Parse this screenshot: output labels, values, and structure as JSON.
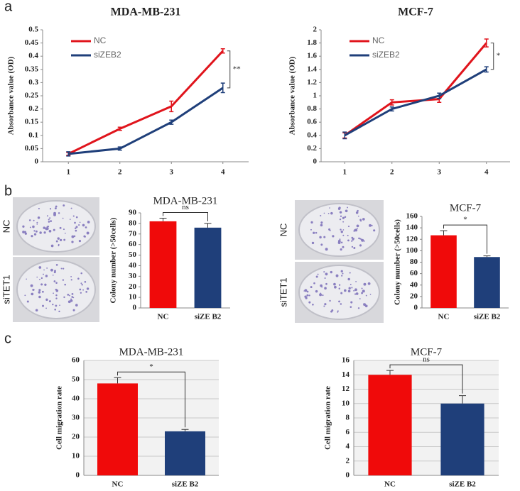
{
  "panels": [
    "a",
    "b",
    "c"
  ],
  "photos": [
    {
      "labels": [
        "NC",
        "siTET1"
      ]
    },
    {
      "labels": [
        "NC",
        "siTET1"
      ]
    }
  ],
  "chart_data": [
    {
      "type": "line",
      "title": "MDA-MB-231",
      "ylabel": "Absorbance value (OD)",
      "x": [
        1,
        2,
        3,
        4
      ],
      "xlim": [
        0.5,
        4.5
      ],
      "xticks": [
        1,
        2,
        3,
        4
      ],
      "ylim": [
        0,
        0.5
      ],
      "yticks": [
        0,
        0.05,
        0.1,
        0.15,
        0.2,
        0.25,
        0.3,
        0.35,
        0.4,
        0.45,
        0.5
      ],
      "series": [
        {
          "name": "NC",
          "color": "#e0141c",
          "values": [
            0.03,
            0.125,
            0.21,
            0.42
          ],
          "errors": [
            0.005,
            0.006,
            0.02,
            0.008
          ]
        },
        {
          "name": "siZEB2",
          "color": "#1f3f7a",
          "values": [
            0.03,
            0.05,
            0.15,
            0.28
          ],
          "errors": [
            0.008,
            0.006,
            0.008,
            0.018
          ]
        }
      ],
      "annotation": "**",
      "grid": false
    },
    {
      "type": "line",
      "title": "MCF-7",
      "ylabel": "Absorbance value (OD)",
      "x": [
        1,
        2,
        3,
        4
      ],
      "xlim": [
        0.5,
        4.5
      ],
      "xticks": [
        1,
        2,
        3,
        4
      ],
      "ylim": [
        0,
        2
      ],
      "yticks": [
        0,
        0.2,
        0.4,
        0.6,
        0.8,
        1,
        1.2,
        1.4,
        1.6,
        1.8,
        2
      ],
      "series": [
        {
          "name": "NC",
          "color": "#e0141c",
          "values": [
            0.4,
            0.9,
            0.95,
            1.8
          ],
          "errors": [
            0.04,
            0.04,
            0.05,
            0.06
          ]
        },
        {
          "name": "siZEB2",
          "color": "#1f3f7a",
          "values": [
            0.4,
            0.8,
            1.0,
            1.4
          ],
          "errors": [
            0.05,
            0.03,
            0.04,
            0.04
          ]
        }
      ],
      "annotation": "*",
      "grid": false
    },
    {
      "type": "bar",
      "title": "MDA-MB-231",
      "ylabel": "Colony number (>50cells)",
      "categories": [
        "NC",
        "siZE B2"
      ],
      "values": [
        82,
        76
      ],
      "errors": [
        3,
        4
      ],
      "colors": [
        "#f00a0a",
        "#1f3f7a"
      ],
      "ylim": [
        0,
        90
      ],
      "yticks": [
        0,
        10,
        20,
        30,
        40,
        50,
        60,
        70,
        80,
        90
      ],
      "annotation": "ns",
      "grid": false
    },
    {
      "type": "bar",
      "title": "MCF-7",
      "ylabel": "Colony number (>50cells)",
      "categories": [
        "NC",
        "siZE B2"
      ],
      "values": [
        127,
        89
      ],
      "errors": [
        8,
        2
      ],
      "colors": [
        "#f00a0a",
        "#1f3f7a"
      ],
      "ylim": [
        0,
        160
      ],
      "yticks": [
        0,
        20,
        40,
        60,
        80,
        100,
        120,
        140,
        160
      ],
      "annotation": "*",
      "grid": false
    },
    {
      "type": "bar",
      "title": "MDA-MB-231",
      "ylabel": "Cell migration rate",
      "categories": [
        "NC",
        "siZE B2"
      ],
      "values": [
        48,
        23
      ],
      "errors": [
        3,
        1
      ],
      "colors": [
        "#f00a0a",
        "#1f3f7a"
      ],
      "ylim": [
        0,
        60
      ],
      "yticks": [
        0,
        10,
        20,
        30,
        40,
        50,
        60
      ],
      "annotation": "*",
      "grid": true
    },
    {
      "type": "bar",
      "title": "MCF-7",
      "ylabel": "Cell migration rate",
      "categories": [
        "NC",
        "siZE B2"
      ],
      "values": [
        14,
        10
      ],
      "errors": [
        0.6,
        1.1
      ],
      "colors": [
        "#f00a0a",
        "#1f3f7a"
      ],
      "ylim": [
        0,
        16
      ],
      "yticks": [
        0,
        2,
        4,
        6,
        8,
        10,
        12,
        14,
        16
      ],
      "annotation": "ns",
      "grid": true
    }
  ]
}
